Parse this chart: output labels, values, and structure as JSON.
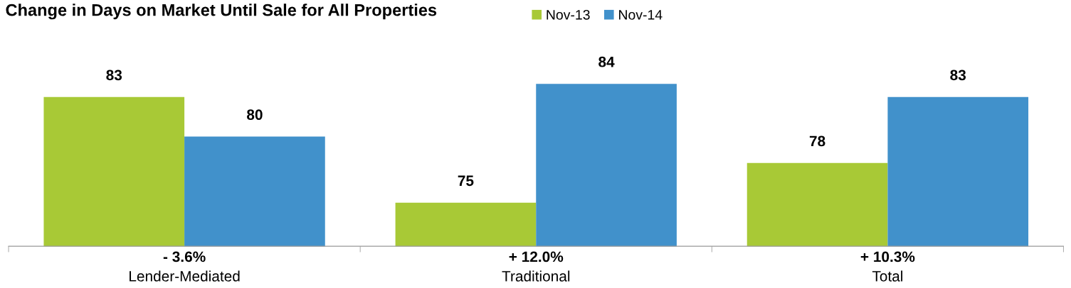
{
  "chart_data": {
    "type": "bar",
    "title": "Change in Days on Market Until Sale for All Properties",
    "categories": [
      "Lender-Mediated",
      "Traditional",
      "Total"
    ],
    "series": [
      {
        "name": "Nov-13",
        "color": "#a8c936",
        "values": [
          83,
          75,
          78
        ]
      },
      {
        "name": "Nov-14",
        "color": "#4191cb",
        "values": [
          80,
          84,
          83
        ]
      }
    ],
    "ylim": [
      71.7,
      84
    ],
    "tick_labels": "x",
    "data_labels": true,
    "legend": "top",
    "grid": false,
    "annotations": [
      "- 3.6%",
      "+ 12.0%",
      "+ 10.3%"
    ]
  }
}
